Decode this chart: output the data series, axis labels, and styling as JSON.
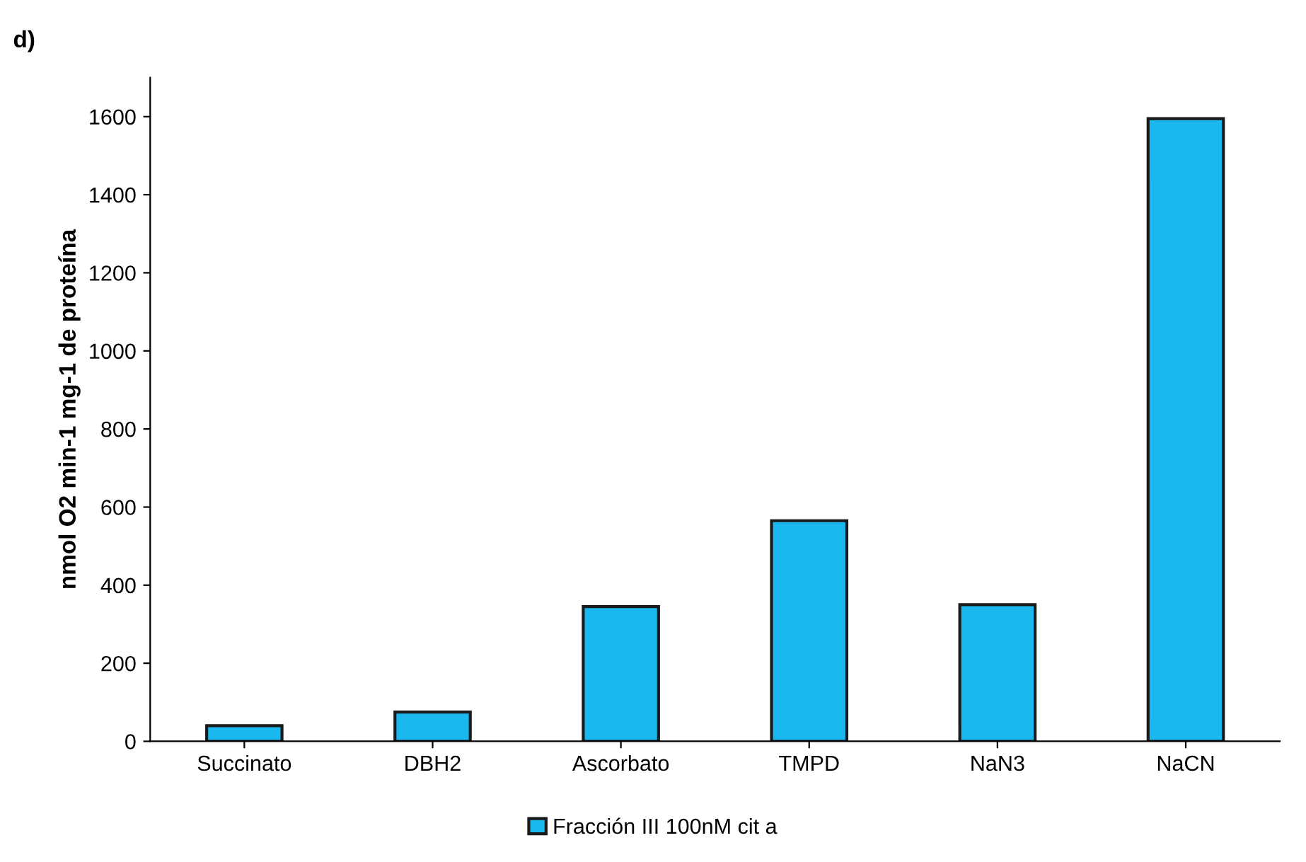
{
  "chart_data": {
    "type": "bar",
    "title": "d)",
    "ylabel": "nmol O2 min-1 mg-1 de proteína",
    "categories": [
      "Succinato",
      "DBH2",
      "Ascorbato",
      "TMPD",
      "NaN3",
      "NaCN"
    ],
    "series": [
      {
        "name": "Fracción III 100nM cit a",
        "color": "#1ab8ee",
        "values": [
          40,
          75,
          345,
          565,
          350,
          1595
        ]
      }
    ],
    "ylim": [
      0,
      1700
    ],
    "yticks": [
      0,
      200,
      400,
      600,
      800,
      1000,
      1200,
      1400,
      1600
    ],
    "grid": false,
    "legend": "bottom"
  }
}
